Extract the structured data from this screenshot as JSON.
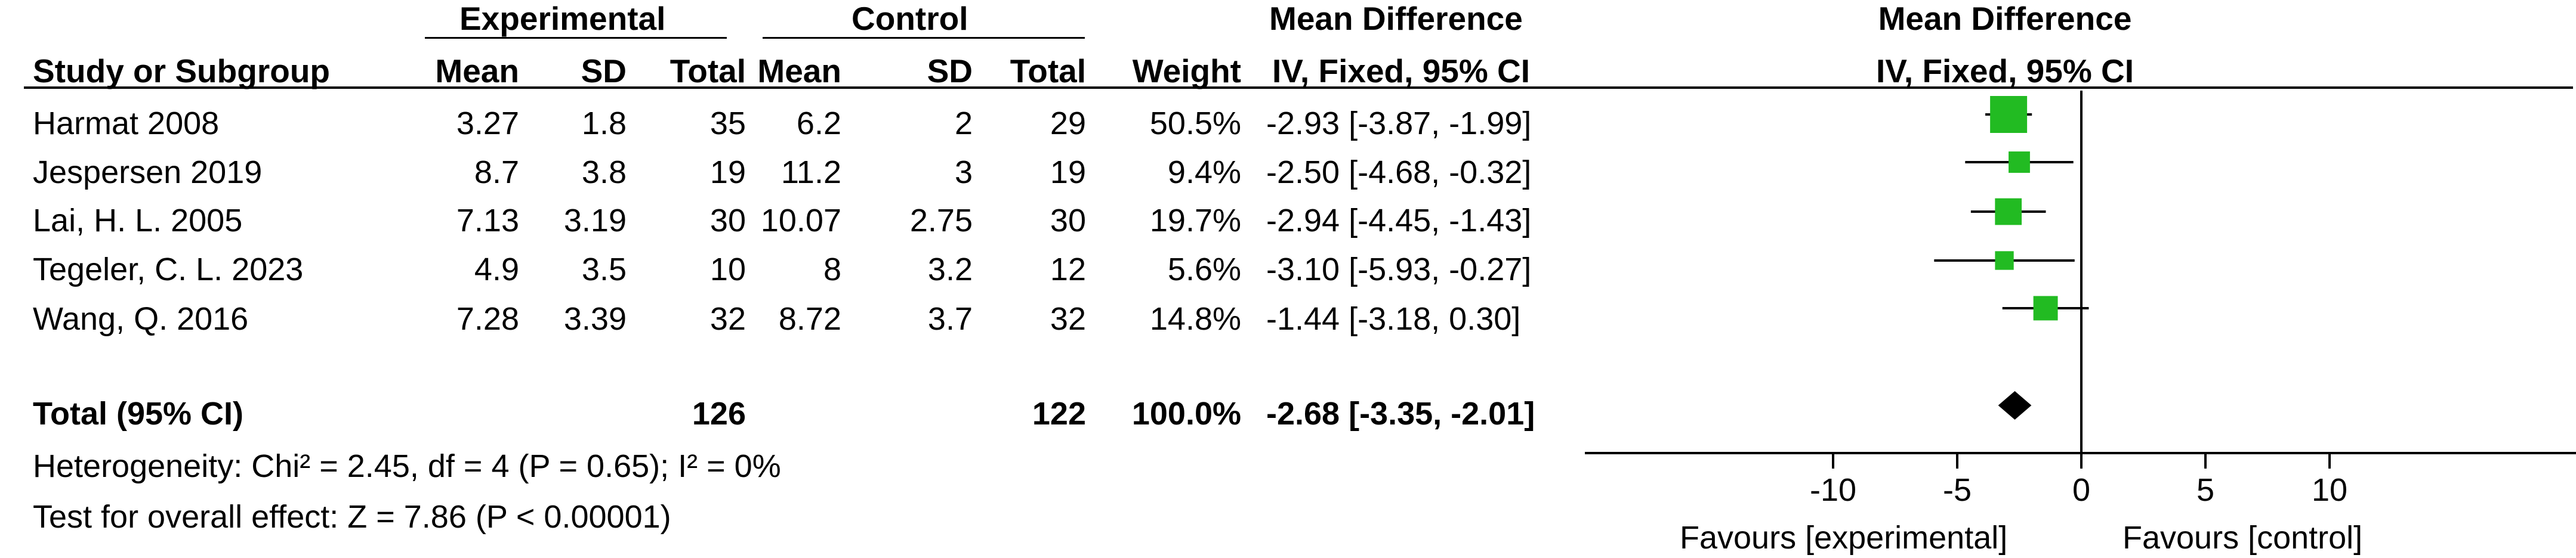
{
  "headers": {
    "experimental": "Experimental",
    "control": "Control",
    "study": "Study or Subgroup",
    "mean": "Mean",
    "sd": "SD",
    "total": "Total",
    "weight": "Weight",
    "md_title": "Mean Difference",
    "md_method": "IV, Fixed, 95% CI",
    "plot_title": "Mean Difference",
    "plot_method": "IV, Fixed, 95% CI"
  },
  "studies": [
    {
      "name": "Harmat 2008",
      "exp_mean": "3.27",
      "exp_sd": "1.8",
      "exp_total": "35",
      "ctl_mean": "6.2",
      "ctl_sd": "2",
      "ctl_total": "29",
      "weight": "50.5%",
      "ci_text": "-2.93 [-3.87, -1.99]"
    },
    {
      "name": "Jespersen 2019",
      "exp_mean": "8.7",
      "exp_sd": "3.8",
      "exp_total": "19",
      "ctl_mean": "11.2",
      "ctl_sd": "3",
      "ctl_total": "19",
      "weight": "9.4%",
      "ci_text": "-2.50 [-4.68, -0.32]"
    },
    {
      "name": "Lai, H. L. 2005",
      "exp_mean": "7.13",
      "exp_sd": "3.19",
      "exp_total": "30",
      "ctl_mean": "10.07",
      "ctl_sd": "2.75",
      "ctl_total": "30",
      "weight": "19.7%",
      "ci_text": "-2.94 [-4.45, -1.43]"
    },
    {
      "name": "Tegeler, C. L. 2023",
      "exp_mean": "4.9",
      "exp_sd": "3.5",
      "exp_total": "10",
      "ctl_mean": "8",
      "ctl_sd": "3.2",
      "ctl_total": "12",
      "weight": "5.6%",
      "ci_text": "-3.10 [-5.93, -0.27]"
    },
    {
      "name": "Wang, Q. 2016",
      "exp_mean": "7.28",
      "exp_sd": "3.39",
      "exp_total": "32",
      "ctl_mean": "8.72",
      "ctl_sd": "3.7",
      "ctl_total": "32",
      "weight": "14.8%",
      "ci_text": "-1.44 [-3.18, 0.30]"
    }
  ],
  "total": {
    "label": "Total (95% CI)",
    "exp_total": "126",
    "ctl_total": "122",
    "weight": "100.0%",
    "ci_text": "-2.68 [-3.35, -2.01]"
  },
  "heterogeneity": "Heterogeneity: Chi² = 2.45, df = 4 (P = 0.65); I² = 0%",
  "overall_effect": "Test for overall effect: Z = 7.86 (P < 0.00001)",
  "favours_left": "Favours [experimental]",
  "favours_right": "Favours [control]",
  "chart_data": {
    "type": "scatter",
    "subtype": "forest",
    "x_range": [
      -20,
      20
    ],
    "x_ticks": [
      -10,
      -5,
      0,
      5,
      10
    ],
    "reference_line": 0,
    "colors": {
      "marker": "#22bb22",
      "diamond": "#000000",
      "line": "#000000"
    },
    "points": [
      {
        "label": "Harmat 2008",
        "x": -2.93,
        "lo": -3.87,
        "hi": -1.99,
        "weight": 50.5
      },
      {
        "label": "Jespersen 2019",
        "x": -2.5,
        "lo": -4.68,
        "hi": -0.32,
        "weight": 9.4
      },
      {
        "label": "Lai, H. L. 2005",
        "x": -2.94,
        "lo": -4.45,
        "hi": -1.43,
        "weight": 19.7
      },
      {
        "label": "Tegeler, C. L. 2023",
        "x": -3.1,
        "lo": -5.93,
        "hi": -0.27,
        "weight": 5.6
      },
      {
        "label": "Wang, Q. 2016",
        "x": -1.44,
        "lo": -3.18,
        "hi": 0.3,
        "weight": 14.8
      }
    ],
    "pooled": {
      "label": "Total (95% CI)",
      "x": -2.68,
      "lo": -3.35,
      "hi": -2.01
    }
  }
}
